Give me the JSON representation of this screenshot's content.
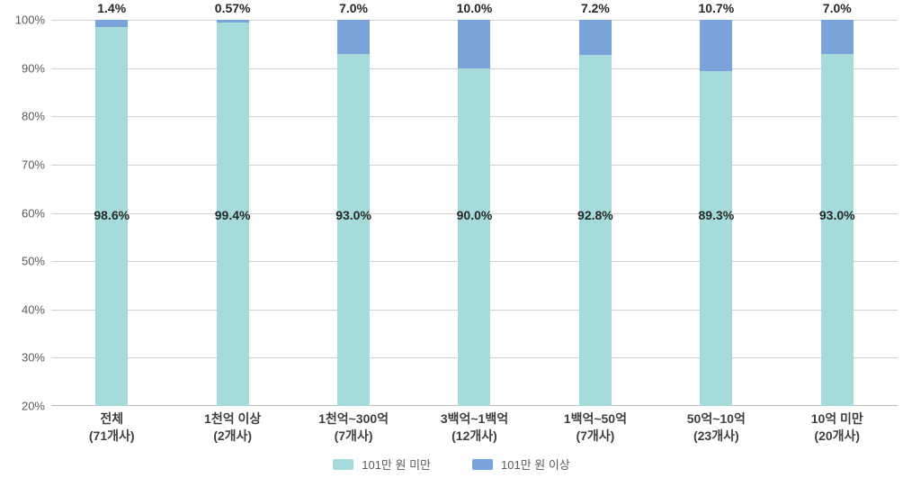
{
  "chart_data": {
    "type": "bar",
    "stacked": true,
    "percent_stacked": true,
    "title": "",
    "xlabel": "",
    "ylabel": "",
    "categories": [
      "전체",
      "1천억 이상",
      "1천억~300억",
      "3백억~1백억",
      "1백억~50억",
      "50억~10억",
      "10억 미만"
    ],
    "category_subs": [
      "(71개사)",
      "(2개사)",
      "(7개사)",
      "(12개사)",
      "(7개사)",
      "(23개사)",
      "(20개사)"
    ],
    "series": [
      {
        "name": "101만 원 미만",
        "color": "#a5dcdb",
        "values": [
          98.6,
          99.4,
          93.0,
          90.0,
          92.8,
          89.3,
          93.0
        ],
        "data_labels": [
          "98.6%",
          "99.4%",
          "93.0%",
          "90.0%",
          "92.8%",
          "89.3%",
          "93.0%"
        ]
      },
      {
        "name": "101만 원 이상",
        "color": "#79a3d9",
        "values": [
          1.4,
          0.57,
          7.0,
          10.0,
          7.2,
          10.7,
          7.0
        ],
        "data_labels": [
          "1.4%",
          "0.57%",
          "7.0%",
          "10.0%",
          "7.2%",
          "10.7%",
          "7.0%"
        ]
      }
    ],
    "ylim": [
      20,
      100
    ],
    "ytick_labels": [
      "100%",
      "90%",
      "80%",
      "70%",
      "60%",
      "50%",
      "40%",
      "30%",
      "20%"
    ],
    "grid": true,
    "legend_position": "bottom"
  },
  "colors": {
    "grid_line": "#d2d2d2",
    "axis_text": "#595959",
    "value_text": "#282828",
    "category_text": "#3f3f3f"
  }
}
